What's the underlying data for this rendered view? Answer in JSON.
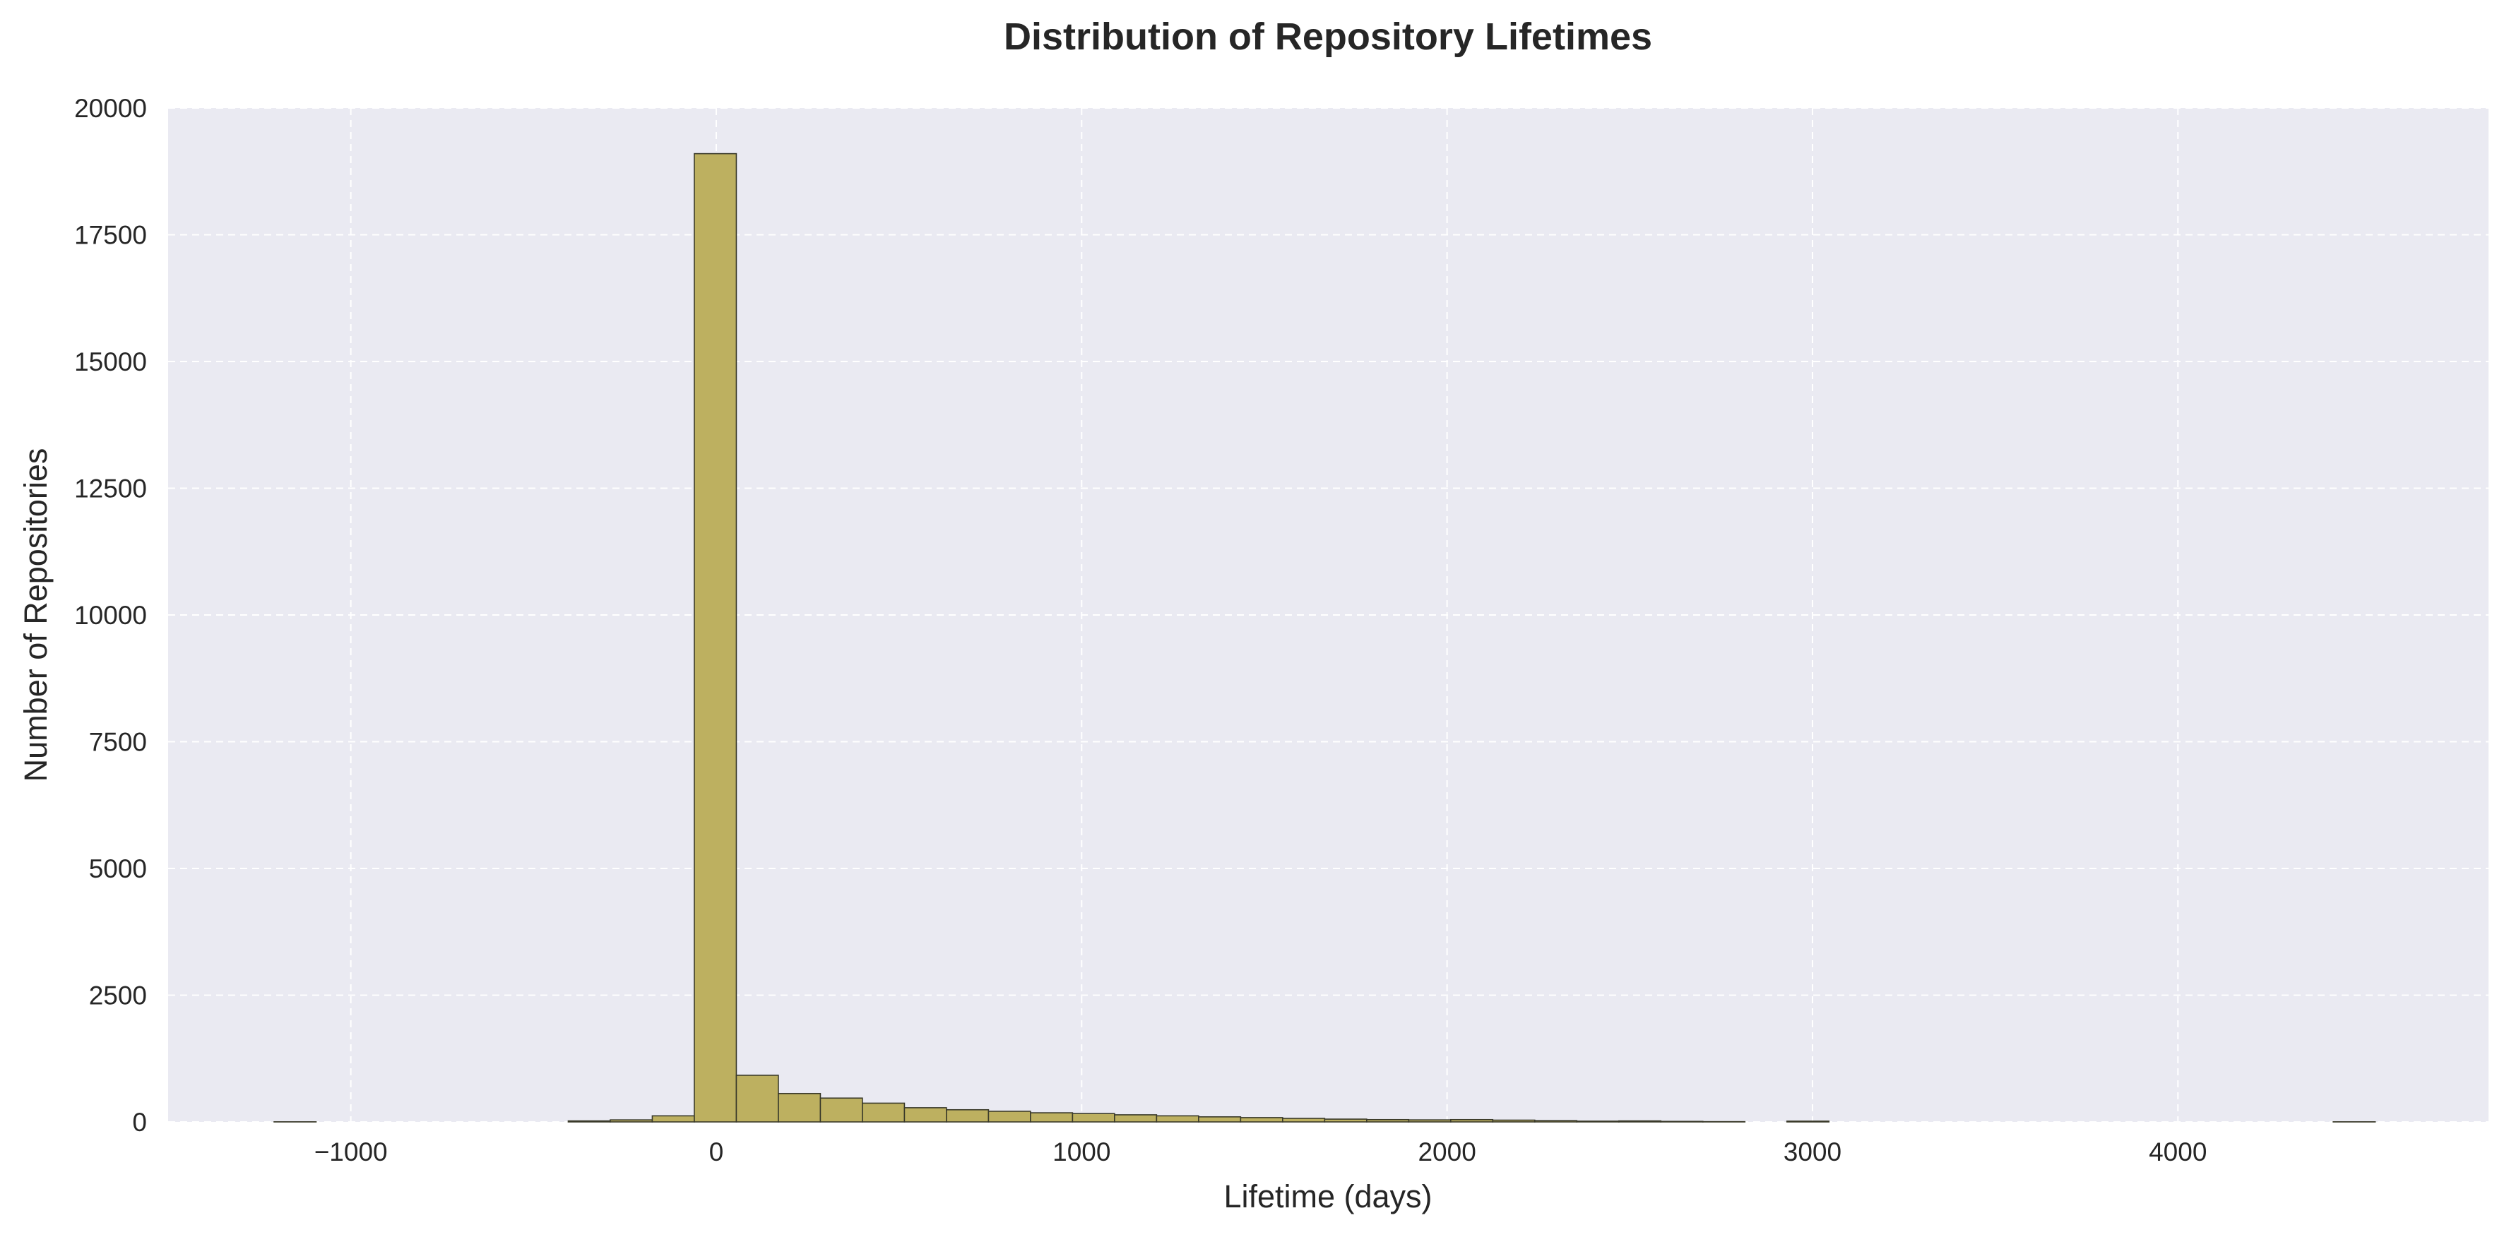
{
  "chart_data": {
    "type": "bar",
    "title": "Distribution of Repository Lifetimes",
    "xlabel": "Lifetime (days)",
    "ylabel": "Number of Repositories",
    "xlim": [
      -1500,
      4850
    ],
    "ylim": [
      0,
      20000
    ],
    "xticks": [
      -1000,
      0,
      1000,
      2000,
      3000,
      4000
    ],
    "xtick_labels": [
      "−1000",
      "0",
      "1000",
      "2000",
      "3000",
      "4000"
    ],
    "yticks": [
      0,
      2500,
      5000,
      7500,
      10000,
      12500,
      15000,
      17500,
      20000
    ],
    "ytick_labels": [
      "0",
      "2500",
      "5000",
      "7500",
      "10000",
      "12500",
      "15000",
      "17500",
      "20000"
    ],
    "grid": true,
    "colors": {
      "bar_fill": "#bdb060",
      "bar_edge": "#3a3a2a",
      "plot_background": "#eaeaf2",
      "grid": "#ffffff"
    },
    "bins": [
      {
        "x0": -1210,
        "x1": -1095,
        "count": 2
      },
      {
        "x0": -1095,
        "x1": -980,
        "count": 0
      },
      {
        "x0": -980,
        "x1": -865,
        "count": 0
      },
      {
        "x0": -865,
        "x1": -750,
        "count": 0
      },
      {
        "x0": -750,
        "x1": -635,
        "count": 0
      },
      {
        "x0": -635,
        "x1": -520,
        "count": 0
      },
      {
        "x0": -520,
        "x1": -405,
        "count": 0
      },
      {
        "x0": -405,
        "x1": -290,
        "count": 20
      },
      {
        "x0": -290,
        "x1": -175,
        "count": 40
      },
      {
        "x0": -175,
        "x1": -60,
        "count": 120
      },
      {
        "x0": -60,
        "x1": 55,
        "count": 19100
      },
      {
        "x0": 55,
        "x1": 170,
        "count": 920
      },
      {
        "x0": 170,
        "x1": 285,
        "count": 560
      },
      {
        "x0": 285,
        "x1": 400,
        "count": 470
      },
      {
        "x0": 400,
        "x1": 515,
        "count": 370
      },
      {
        "x0": 515,
        "x1": 630,
        "count": 280
      },
      {
        "x0": 630,
        "x1": 745,
        "count": 240
      },
      {
        "x0": 745,
        "x1": 860,
        "count": 210
      },
      {
        "x0": 860,
        "x1": 975,
        "count": 180
      },
      {
        "x0": 975,
        "x1": 1090,
        "count": 165
      },
      {
        "x0": 1090,
        "x1": 1205,
        "count": 140
      },
      {
        "x0": 1205,
        "x1": 1320,
        "count": 120
      },
      {
        "x0": 1320,
        "x1": 1435,
        "count": 100
      },
      {
        "x0": 1435,
        "x1": 1550,
        "count": 85
      },
      {
        "x0": 1550,
        "x1": 1665,
        "count": 70
      },
      {
        "x0": 1665,
        "x1": 1780,
        "count": 55
      },
      {
        "x0": 1780,
        "x1": 1895,
        "count": 45
      },
      {
        "x0": 1895,
        "x1": 2010,
        "count": 40
      },
      {
        "x0": 2010,
        "x1": 2125,
        "count": 45
      },
      {
        "x0": 2125,
        "x1": 2240,
        "count": 35
      },
      {
        "x0": 2240,
        "x1": 2355,
        "count": 25
      },
      {
        "x0": 2355,
        "x1": 2470,
        "count": 15
      },
      {
        "x0": 2470,
        "x1": 2585,
        "count": 20
      },
      {
        "x0": 2585,
        "x1": 2700,
        "count": 10
      },
      {
        "x0": 2700,
        "x1": 2815,
        "count": 5
      },
      {
        "x0": 2815,
        "x1": 2930,
        "count": 0
      },
      {
        "x0": 2930,
        "x1": 3045,
        "count": 15
      },
      {
        "x0": 3045,
        "x1": 3160,
        "count": 0
      },
      {
        "x0": 3160,
        "x1": 3275,
        "count": 0
      },
      {
        "x0": 3275,
        "x1": 3390,
        "count": 0
      },
      {
        "x0": 3390,
        "x1": 3505,
        "count": 0
      },
      {
        "x0": 3505,
        "x1": 3620,
        "count": 0
      },
      {
        "x0": 3620,
        "x1": 3735,
        "count": 0
      },
      {
        "x0": 3735,
        "x1": 3850,
        "count": 0
      },
      {
        "x0": 3850,
        "x1": 3965,
        "count": 0
      },
      {
        "x0": 3965,
        "x1": 4080,
        "count": 0
      },
      {
        "x0": 4080,
        "x1": 4195,
        "count": 0
      },
      {
        "x0": 4195,
        "x1": 4310,
        "count": 0
      },
      {
        "x0": 4310,
        "x1": 4425,
        "count": 0
      },
      {
        "x0": 4425,
        "x1": 4540,
        "count": 2
      }
    ]
  }
}
